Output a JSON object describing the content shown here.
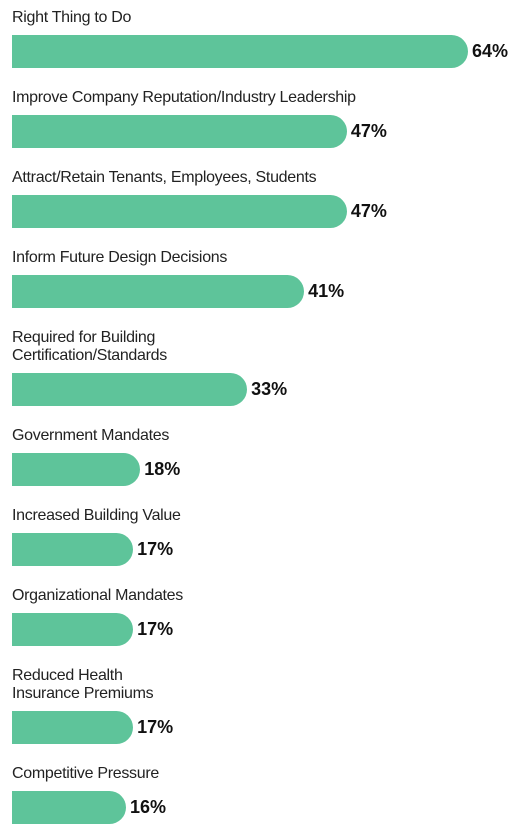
{
  "chart_data": {
    "type": "bar",
    "orientation": "horizontal",
    "color": "#5ec49a",
    "categories": [
      "Right Thing to Do",
      "Improve Company Reputation/Industry Leadership",
      "Attract/Retain Tenants, Employees, Students",
      "Inform Future Design Decisions",
      "Required for Building\nCertification/Standards",
      "Government Mandates",
      "Increased Building Value",
      "Organizational Mandates",
      "Reduced Health\nInsurance Premiums",
      "Competitive Pressure"
    ],
    "values": [
      64,
      47,
      47,
      41,
      33,
      18,
      17,
      17,
      17,
      16
    ],
    "value_labels": [
      "64%",
      "47%",
      "47%",
      "41%",
      "33%",
      "18%",
      "17%",
      "17%",
      "17%",
      "16%"
    ]
  }
}
